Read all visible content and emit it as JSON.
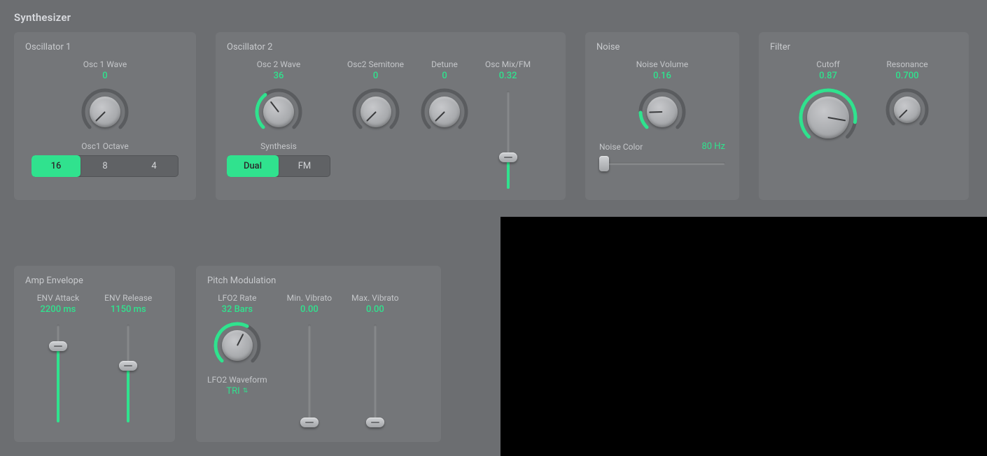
{
  "accent_color": "#30e28e",
  "title": "Synthesizer",
  "osc1": {
    "title": "Oscillator 1",
    "wave": {
      "label": "Osc 1 Wave",
      "value": "0",
      "angle_deg": 0,
      "arc_pct": 0,
      "knob_size": 68
    },
    "octave_label": "Osc1 Octave",
    "octave_options": [
      "16",
      "8",
      "4"
    ],
    "octave_selected_index": 0
  },
  "osc2": {
    "title": "Oscillator 2",
    "wave": {
      "label": "Osc 2 Wave",
      "value": "36",
      "angle_deg": 97,
      "arc_pct": 0.36,
      "knob_size": 68
    },
    "semitone": {
      "label": "Osc2 Semitone",
      "value": "0",
      "angle_deg": 0,
      "arc_pct": 0,
      "knob_size": 68
    },
    "detune": {
      "label": "Detune",
      "value": "0",
      "angle_deg": 0,
      "arc_pct": 0,
      "knob_size": 68
    },
    "mix": {
      "label": "Osc Mix/FM",
      "value": "0.32",
      "slider_pct": 0.32
    },
    "synth_label": "Synthesis",
    "synth_options": [
      "Dual",
      "FM"
    ],
    "synth_selected_index": 0
  },
  "noise": {
    "title": "Noise",
    "volume": {
      "label": "Noise Volume",
      "value": "0.16",
      "angle_deg": 43,
      "arc_pct": 0.16,
      "knob_size": 68
    },
    "color_label": "Noise Color",
    "color_value": "80 Hz",
    "color_slider_pct": 0.04
  },
  "filter": {
    "title": "Filter",
    "cutoff": {
      "label": "Cutoff",
      "value": "0.87",
      "angle_deg": 235,
      "arc_pct": 0.87,
      "knob_size": 84
    },
    "resonance": {
      "label": "Resonance",
      "value": "0.700",
      "angle_deg": 0,
      "arc_pct": 0,
      "knob_size": 62
    }
  },
  "amp": {
    "title": "Amp Envelope",
    "attack": {
      "label": "ENV Attack",
      "value": "2200 ms",
      "slider_pct": 0.78
    },
    "release": {
      "label": "ENV Release",
      "value": "1150 ms",
      "slider_pct": 0.58
    }
  },
  "pitch": {
    "title": "Pitch Modulation",
    "rate": {
      "label": "LFO2 Rate",
      "value": "32 Bars",
      "angle_deg": 162,
      "arc_pct": 0.6,
      "knob_size": 68
    },
    "minvib": {
      "label": "Min. Vibrato",
      "value": "0.00",
      "slider_pct": 0.0
    },
    "maxvib": {
      "label": "Max. Vibrato",
      "value": "0.00",
      "slider_pct": 0.0
    },
    "waveform_label": "LFO2 Waveform",
    "waveform_value": "TRI"
  }
}
